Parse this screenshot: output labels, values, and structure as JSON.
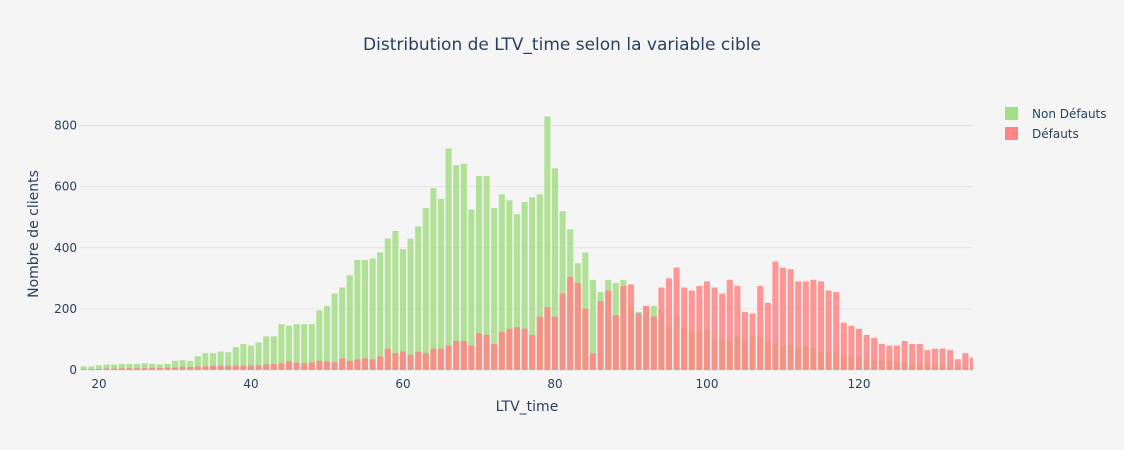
{
  "chart_data": {
    "type": "bar",
    "title": "Distribution de LTV_time selon la variable cible",
    "xlabel": "LTV_time",
    "ylabel": "Nombre de clients",
    "xlim": [
      17.5,
      135
    ],
    "ylim": [
      0,
      900
    ],
    "xticks": [
      20,
      40,
      60,
      80,
      100,
      120
    ],
    "yticks": [
      0,
      200,
      400,
      600,
      800
    ],
    "grid": true,
    "barmode": "overlay",
    "legend_position": "top-right",
    "x": [
      18,
      19,
      20,
      21,
      22,
      23,
      24,
      25,
      26,
      27,
      28,
      29,
      30,
      31,
      32,
      33,
      34,
      35,
      36,
      37,
      38,
      39,
      40,
      41,
      42,
      43,
      44,
      45,
      46,
      47,
      48,
      49,
      50,
      51,
      52,
      53,
      54,
      55,
      56,
      57,
      58,
      59,
      60,
      61,
      62,
      63,
      64,
      65,
      66,
      67,
      68,
      69,
      70,
      71,
      72,
      73,
      74,
      75,
      76,
      77,
      78,
      79,
      80,
      81,
      82,
      83,
      84,
      85,
      86,
      87,
      88,
      89,
      90,
      91,
      92,
      93,
      94,
      95,
      96,
      97,
      98,
      99,
      100,
      101,
      102,
      103,
      104,
      105,
      106,
      107,
      108,
      109,
      110,
      111,
      112,
      113,
      114,
      115,
      116,
      117,
      118,
      119,
      120,
      121,
      122,
      123,
      124,
      125,
      126,
      127,
      128,
      129,
      130,
      131,
      132,
      133,
      134,
      135
    ],
    "series": [
      {
        "name": "Non Défauts",
        "color": "#a3dd85",
        "values": [
          12,
          12,
          15,
          18,
          18,
          20,
          20,
          20,
          22,
          20,
          18,
          20,
          30,
          32,
          30,
          45,
          55,
          55,
          60,
          58,
          75,
          85,
          80,
          90,
          110,
          110,
          150,
          145,
          150,
          150,
          150,
          195,
          210,
          250,
          270,
          310,
          360,
          360,
          365,
          385,
          430,
          455,
          395,
          430,
          470,
          530,
          595,
          560,
          725,
          670,
          675,
          525,
          635,
          635,
          530,
          575,
          555,
          510,
          550,
          565,
          575,
          830,
          660,
          520,
          460,
          350,
          385,
          295,
          255,
          295,
          285,
          295,
          205,
          190,
          205,
          210,
          195,
          140,
          175,
          140,
          130,
          130,
          130,
          100,
          100,
          95,
          110,
          100,
          110,
          110,
          95,
          90,
          80,
          80,
          70,
          75,
          70,
          60,
          60,
          60,
          50,
          45,
          45,
          35,
          30,
          30,
          30,
          25,
          25,
          20,
          20,
          18,
          15,
          15,
          10,
          10,
          8,
          5
        ]
      },
      {
        "name": "Défauts",
        "color": "#ff8585",
        "values": [
          2,
          3,
          3,
          5,
          5,
          6,
          6,
          6,
          6,
          7,
          7,
          8,
          8,
          10,
          10,
          12,
          12,
          14,
          14,
          14,
          15,
          14,
          15,
          16,
          18,
          20,
          22,
          28,
          24,
          22,
          25,
          30,
          28,
          25,
          38,
          30,
          35,
          38,
          35,
          45,
          70,
          55,
          60,
          50,
          60,
          55,
          70,
          70,
          80,
          95,
          95,
          80,
          120,
          115,
          85,
          125,
          135,
          140,
          135,
          115,
          175,
          205,
          175,
          250,
          305,
          285,
          200,
          55,
          225,
          260,
          180,
          275,
          280,
          185,
          210,
          175,
          270,
          300,
          335,
          270,
          260,
          275,
          290,
          270,
          250,
          295,
          275,
          190,
          185,
          275,
          220,
          355,
          335,
          330,
          290,
          290,
          295,
          290,
          260,
          255,
          155,
          145,
          135,
          115,
          105,
          85,
          80,
          80,
          95,
          85,
          85,
          65,
          70,
          70,
          65,
          35,
          55,
          40
        ]
      }
    ]
  }
}
